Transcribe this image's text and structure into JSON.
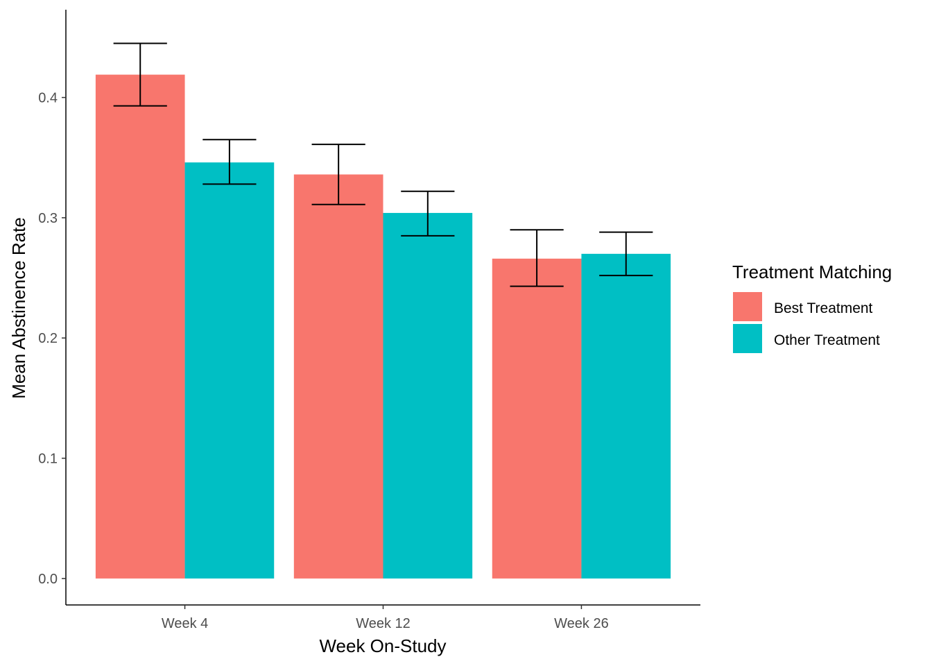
{
  "chart_data": {
    "type": "bar",
    "title": "",
    "xlabel": "Week On-Study",
    "ylabel": "Mean Abstinence Rate",
    "categories": [
      "Week 4",
      "Week 12",
      "Week 26"
    ],
    "ylim": [
      -0.022,
      0.473
    ],
    "y_ticks": [
      0.0,
      0.1,
      0.2,
      0.3,
      0.4
    ],
    "y_tick_labels": [
      "0.0",
      "0.1",
      "0.2",
      "0.3",
      "0.4"
    ],
    "grid": false,
    "legend": {
      "title": "Treatment Matching",
      "placement": "right"
    },
    "series": [
      {
        "name": "Best Treatment",
        "color": "#F8766D",
        "values": [
          0.419,
          0.336,
          0.266
        ],
        "error_low": [
          0.393,
          0.311,
          0.243
        ],
        "error_high": [
          0.445,
          0.361,
          0.29
        ]
      },
      {
        "name": "Other Treatment",
        "color": "#00BFC4",
        "values": [
          0.346,
          0.304,
          0.27
        ],
        "error_low": [
          0.328,
          0.285,
          0.252
        ],
        "error_high": [
          0.365,
          0.322,
          0.288
        ]
      }
    ]
  }
}
